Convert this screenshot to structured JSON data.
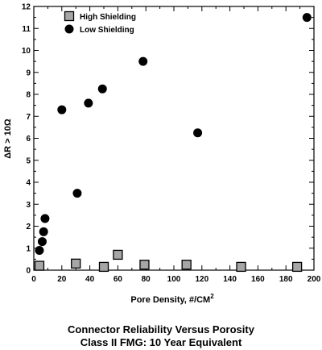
{
  "chart_data": {
    "type": "scatter",
    "xlabel": "Pore Density, #/CM",
    "xlabel_superscript": "2",
    "ylabel": "ΔR > 10Ω",
    "xlim": [
      0,
      200
    ],
    "ylim": [
      0,
      12
    ],
    "x_ticks": [
      0,
      20,
      40,
      60,
      80,
      100,
      120,
      140,
      160,
      180,
      200
    ],
    "y_ticks": [
      0,
      1,
      2,
      3,
      4,
      5,
      6,
      7,
      8,
      9,
      10,
      11,
      12
    ],
    "grid": false,
    "legend_position": "top-left",
    "series": [
      {
        "name": "High Shielding",
        "marker": "square",
        "color": "#a6a6a6",
        "points": [
          {
            "x": 4,
            "y": 0.2
          },
          {
            "x": 30,
            "y": 0.3
          },
          {
            "x": 50,
            "y": 0.15
          },
          {
            "x": 60,
            "y": 0.7
          },
          {
            "x": 79,
            "y": 0.25
          },
          {
            "x": 109,
            "y": 0.25
          },
          {
            "x": 148,
            "y": 0.15
          },
          {
            "x": 188,
            "y": 0.15
          }
        ]
      },
      {
        "name": "Low Shielding",
        "marker": "circle",
        "color": "#000000",
        "points": [
          {
            "x": 4,
            "y": 0.9
          },
          {
            "x": 6,
            "y": 1.3
          },
          {
            "x": 7,
            "y": 1.75
          },
          {
            "x": 8,
            "y": 2.35
          },
          {
            "x": 20,
            "y": 7.3
          },
          {
            "x": 31,
            "y": 3.5
          },
          {
            "x": 39,
            "y": 7.6
          },
          {
            "x": 49,
            "y": 8.25
          },
          {
            "x": 78,
            "y": 9.5
          },
          {
            "x": 117,
            "y": 6.25
          },
          {
            "x": 195,
            "y": 11.5
          }
        ]
      }
    ]
  },
  "caption": {
    "line1": "Connector Reliability Versus Porosity",
    "line2": "Class II FMG: 10 Year Equivalent"
  }
}
